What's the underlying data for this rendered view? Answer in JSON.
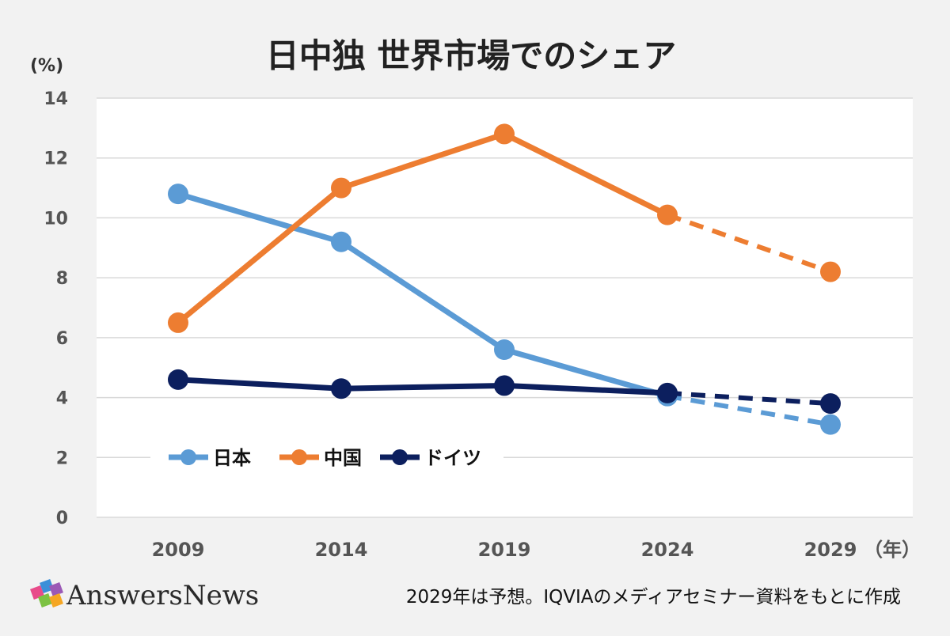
{
  "chart_data": {
    "type": "line",
    "title": "日中独 世界市場でのシェア",
    "ylabel": "(%)",
    "xlabel_suffix": "（年）",
    "ylim": [
      0,
      14
    ],
    "yticks": [
      0,
      2,
      4,
      6,
      8,
      10,
      12,
      14
    ],
    "categories": [
      "2009",
      "2014",
      "2019",
      "2024",
      "2029"
    ],
    "forecast_from_index": 3,
    "series": [
      {
        "name": "日本",
        "color": "#5b9bd5",
        "values": [
          10.8,
          9.2,
          5.6,
          4.05,
          3.1
        ]
      },
      {
        "name": "中国",
        "color": "#ed7d31",
        "values": [
          6.5,
          11.0,
          12.8,
          10.1,
          8.2
        ]
      },
      {
        "name": "ドイツ",
        "color": "#0c1f5e",
        "values": [
          4.6,
          4.3,
          4.4,
          4.15,
          3.8
        ]
      }
    ],
    "grid": true,
    "legend_position": "bottom-left inside"
  },
  "footer": {
    "brand": "AnswersNews",
    "note": "2029年は予想。IQVIAのメディアセミナー資料をもとに作成"
  },
  "colors": {
    "background": "#f2f2f2",
    "plot_background": "#ffffff",
    "grid": "#d9d9d9"
  }
}
